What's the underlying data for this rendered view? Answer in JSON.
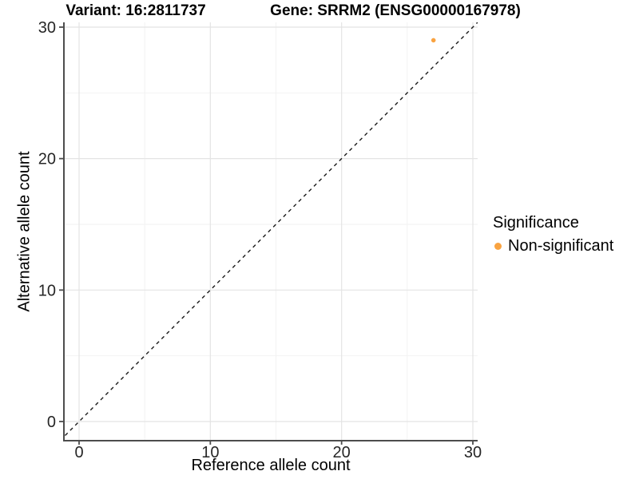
{
  "header": {
    "variant_title": "Variant: 16:2811737",
    "gene_title": "Gene: SRRM2 (ENSG00000167978)"
  },
  "axes": {
    "x": {
      "label": "Reference allele count",
      "ticks": [
        0,
        10,
        20,
        30
      ],
      "minor_ticks": [
        5,
        15,
        25
      ]
    },
    "y": {
      "label": "Alternative allele count",
      "ticks": [
        0,
        10,
        20,
        30
      ],
      "minor_ticks": [
        5,
        15,
        25
      ]
    }
  },
  "legend": {
    "title": "Significance",
    "items": [
      {
        "label": "Non-significant",
        "color": "#F9A341"
      }
    ]
  },
  "style": {
    "grid_major": "#e4e4e4",
    "grid_minor": "#f1f1f1",
    "axis_line": "#4d4d4d",
    "tick_label": "#262626",
    "dashed_line": "#1a1a1a",
    "background": "#ffffff"
  },
  "chart_data": {
    "type": "scatter",
    "title": "Variant: 16:2811737   Gene: SRRM2 (ENSG00000167978)",
    "xlabel": "Reference allele count",
    "ylabel": "Alternative allele count",
    "xlim": [
      0,
      30
    ],
    "ylim": [
      0,
      30
    ],
    "x_ticks": [
      0,
      10,
      20,
      30
    ],
    "y_ticks": [
      0,
      10,
      20,
      30
    ],
    "grid": "on",
    "legend_position": "right",
    "series": [
      {
        "name": "Non-significant",
        "color": "#F9A341",
        "points": [
          {
            "x": 27,
            "y": 29
          }
        ]
      }
    ],
    "reference_line": {
      "type": "identity",
      "slope": 1,
      "intercept": 0,
      "style": "dashed"
    }
  }
}
